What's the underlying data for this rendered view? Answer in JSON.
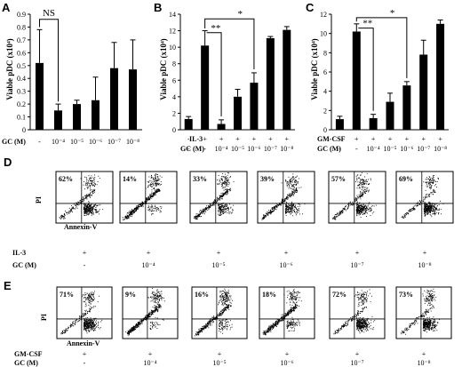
{
  "panels": [
    {
      "letter": "A",
      "ylabel": "Viable pDC (x10⁴)",
      "yticks": [
        "0",
        "0.1",
        "0.2",
        "0.3",
        "0.4",
        "0.5",
        "0.6",
        "0.7",
        "0.8",
        "0.9"
      ],
      "treat_label": "",
      "treat_marks": [],
      "gc_label": "GC (M)",
      "gc_marks": [
        "-",
        "10⁻⁴",
        "10⁻⁵",
        "10⁻⁶",
        "10⁻⁷",
        "10⁻⁸"
      ],
      "sig_label": "NS"
    },
    {
      "letter": "B",
      "ylabel": "Viable pDC (x10⁴)",
      "yticks": [
        "0",
        "2",
        "4",
        "6",
        "8",
        "10",
        "12",
        "14"
      ],
      "treat_label": "IL-3",
      "treat_marks": [
        "-",
        "+",
        "+",
        "+",
        "+",
        "+",
        "+"
      ],
      "gc_label": "GC (M)",
      "gc_marks": [
        "-",
        "-",
        "10⁻⁴",
        "10⁻⁵",
        "10⁻⁶",
        "10⁻⁷",
        "10⁻⁸"
      ],
      "sig_inner": "**",
      "sig_outer": "*"
    },
    {
      "letter": "C",
      "ylabel": "Viable pDC (x10⁴)",
      "yticks": [
        "0",
        "2",
        "4",
        "6",
        "8",
        "10",
        "12"
      ],
      "treat_label": "GM-CSF",
      "treat_marks": [
        "-",
        "+",
        "+",
        "+",
        "+",
        "+",
        "+"
      ],
      "gc_label": "GC (M)",
      "gc_marks": [
        "-",
        "-",
        "10⁻⁴",
        "10⁻⁵",
        "10⁻⁶",
        "10⁻⁷",
        "10⁻⁸"
      ],
      "sig_inner": "**",
      "sig_outer": "*"
    }
  ],
  "rows": [
    {
      "letter": "D",
      "y_axis_label": "PI",
      "x_axis_label": "Annexin-V",
      "treat_label": "IL-3",
      "treat_marks": [
        "+",
        "+",
        "+",
        "+",
        "+",
        "+"
      ],
      "gc_label": "GC (M)",
      "gc_marks": [
        "-",
        "10⁻⁴",
        "10⁻⁵",
        "10⁻⁶",
        "10⁻⁷",
        "10⁻⁸"
      ],
      "percents": [
        "62%",
        "14%",
        "33%",
        "39%",
        "57%",
        "69%"
      ]
    },
    {
      "letter": "E",
      "y_axis_label": "PI",
      "x_axis_label": "Annexin-V",
      "treat_label": "GM-CSF",
      "treat_marks": [
        "+",
        "+",
        "+",
        "+",
        "+",
        "+"
      ],
      "gc_label": "GC (M)",
      "gc_marks": [
        "-",
        "10⁻⁴",
        "10⁻⁵",
        "10⁻⁶",
        "10⁻⁷",
        "10⁻⁸"
      ],
      "percents": [
        "71%",
        "9%",
        "16%",
        "18%",
        "72%",
        "73%"
      ]
    }
  ],
  "chart_data": [
    {
      "type": "bar",
      "categories": [
        "-",
        "10⁻⁴",
        "10⁻⁵",
        "10⁻⁶",
        "10⁻⁷",
        "10⁻⁸"
      ],
      "values": [
        0.52,
        0.15,
        0.2,
        0.23,
        0.48,
        0.47
      ],
      "errors": [
        0.26,
        0.05,
        0.03,
        0.18,
        0.2,
        0.23
      ],
      "ylabel": "Viable pDC (x10⁴)",
      "xlabel": "GC (M)",
      "ylim": [
        0,
        0.9
      ],
      "grid": false
    },
    {
      "type": "bar",
      "categories": [
        "-",
        "-",
        "10⁻⁴",
        "10⁻⁵",
        "10⁻⁶",
        "10⁻⁷",
        "10⁻⁸"
      ],
      "values": [
        1.3,
        10.2,
        0.7,
        4.0,
        5.7,
        11.1,
        12.1
      ],
      "errors": [
        0.3,
        1.8,
        0.5,
        0.9,
        1.2,
        0.2,
        0.4
      ],
      "ylabel": "Viable pDC (x10⁴)",
      "xlabel": "GC (M)",
      "ylim": [
        0,
        14
      ],
      "grid": false
    },
    {
      "type": "bar",
      "categories": [
        "-",
        "-",
        "10⁻⁴",
        "10⁻⁵",
        "10⁻⁶",
        "10⁻⁷",
        "10⁻⁸"
      ],
      "values": [
        1.1,
        10.2,
        1.2,
        2.9,
        4.6,
        7.8,
        11.0
      ],
      "errors": [
        0.3,
        0.8,
        0.4,
        0.9,
        0.4,
        1.5,
        0.4
      ],
      "ylabel": "Viable pDC (x10⁴)",
      "xlabel": "GC (M)",
      "ylim": [
        0,
        12
      ],
      "grid": false
    }
  ]
}
